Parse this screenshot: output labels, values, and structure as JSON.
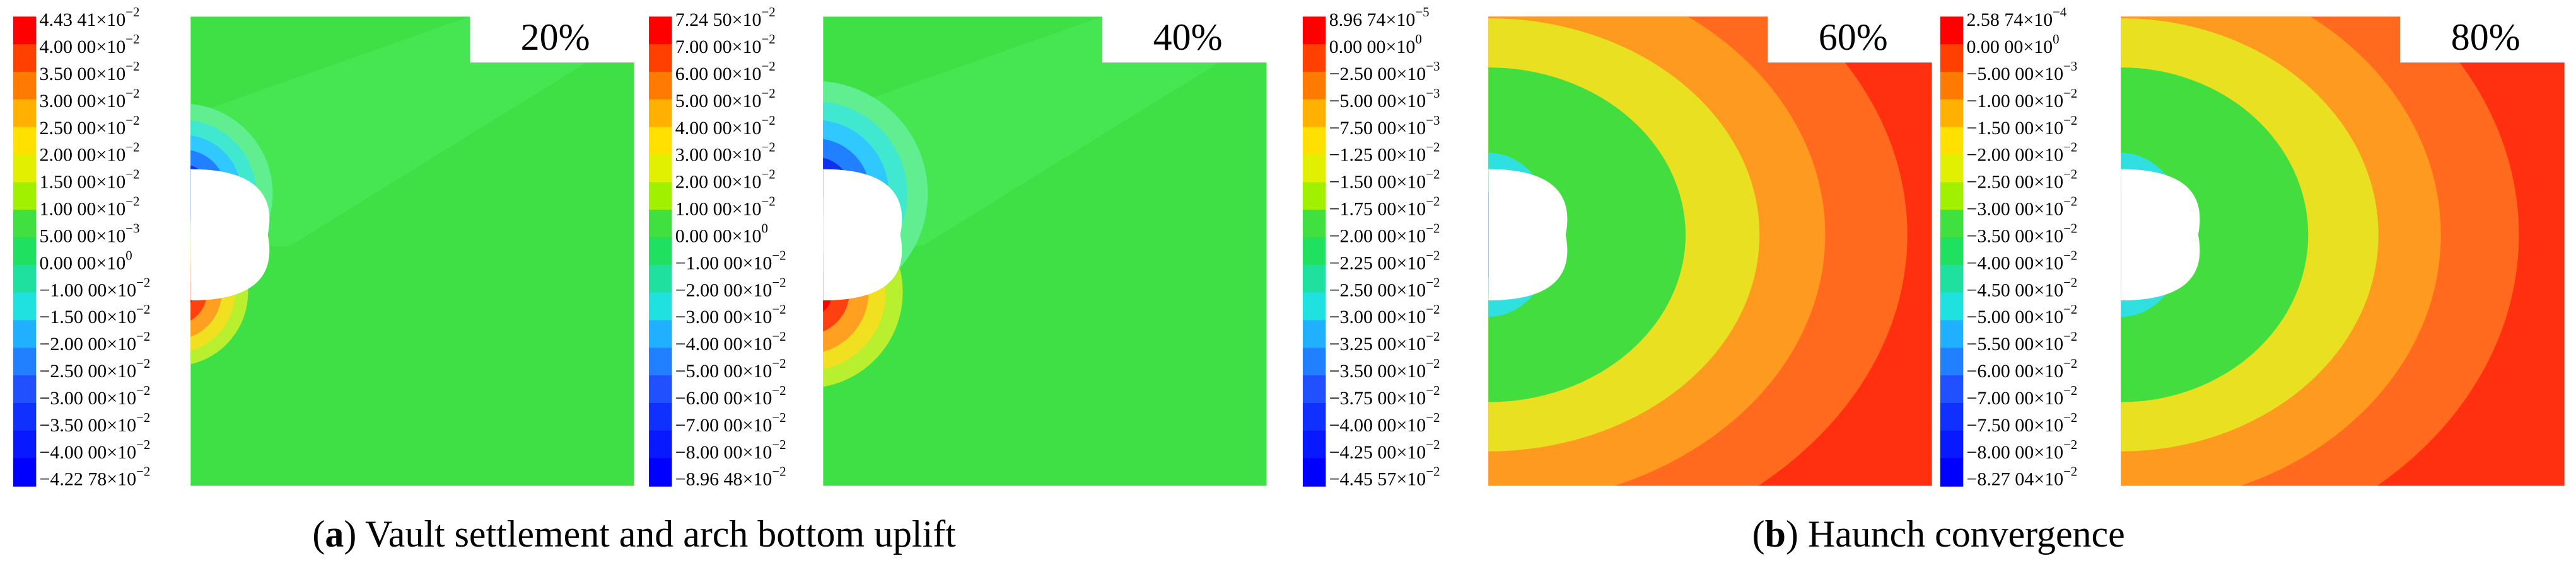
{
  "panels": [
    {
      "percent": "20%",
      "legend": [
        {
          "text": "4.43 41×10",
          "sup": "−2"
        },
        {
          "text": "4.00 00×10",
          "sup": "−2"
        },
        {
          "text": "3.50 00×10",
          "sup": "−2"
        },
        {
          "text": "3.00 00×10",
          "sup": "−2"
        },
        {
          "text": "2.50 00×10",
          "sup": "−2"
        },
        {
          "text": "2.00 00×10",
          "sup": "−2"
        },
        {
          "text": "1.50 00×10",
          "sup": "−2"
        },
        {
          "text": "1.00 00×10",
          "sup": "−2"
        },
        {
          "text": "5.00 00×10",
          "sup": "−3"
        },
        {
          "text": "0.00 00×10",
          "sup": "0"
        },
        {
          "text": "−1.00 00×10",
          "sup": "−2"
        },
        {
          "text": "−1.50 00×10",
          "sup": "−2"
        },
        {
          "text": "−2.00 00×10",
          "sup": "−2"
        },
        {
          "text": "−2.50 00×10",
          "sup": "−2"
        },
        {
          "text": "−3.00 00×10",
          "sup": "−2"
        },
        {
          "text": "−3.50 00×10",
          "sup": "−2"
        },
        {
          "text": "−4.00 00×10",
          "sup": "−2"
        },
        {
          "text": "−4.22 78×10",
          "sup": "−2"
        }
      ]
    },
    {
      "percent": "40%",
      "legend": [
        {
          "text": "7.24 50×10",
          "sup": "−2"
        },
        {
          "text": "7.00 00×10",
          "sup": "−2"
        },
        {
          "text": "6.00 00×10",
          "sup": "−2"
        },
        {
          "text": "5.00 00×10",
          "sup": "−2"
        },
        {
          "text": "4.00 00×10",
          "sup": "−2"
        },
        {
          "text": "3.00 00×10",
          "sup": "−2"
        },
        {
          "text": "2.00 00×10",
          "sup": "−2"
        },
        {
          "text": "1.00 00×10",
          "sup": "−2"
        },
        {
          "text": "0.00 00×10",
          "sup": "0"
        },
        {
          "text": "−1.00 00×10",
          "sup": "−2"
        },
        {
          "text": "−2.00 00×10",
          "sup": "−2"
        },
        {
          "text": "−3.00 00×10",
          "sup": "−2"
        },
        {
          "text": "−4.00 00×10",
          "sup": "−2"
        },
        {
          "text": "−5.00 00×10",
          "sup": "−2"
        },
        {
          "text": "−6.00 00×10",
          "sup": "−2"
        },
        {
          "text": "−7.00 00×10",
          "sup": "−2"
        },
        {
          "text": "−8.00 00×10",
          "sup": "−2"
        },
        {
          "text": "−8.96 48×10",
          "sup": "−2"
        }
      ]
    },
    {
      "percent": "60%",
      "legend": [
        {
          "text": "8.96 74×10",
          "sup": "−5"
        },
        {
          "text": "0.00 00×10",
          "sup": "0"
        },
        {
          "text": "−2.50 00×10",
          "sup": "−3"
        },
        {
          "text": "−5.00 00×10",
          "sup": "−3"
        },
        {
          "text": "−7.50 00×10",
          "sup": "−3"
        },
        {
          "text": "−1.25 00×10",
          "sup": "−2"
        },
        {
          "text": "−1.50 00×10",
          "sup": "−2"
        },
        {
          "text": "−1.75 00×10",
          "sup": "−2"
        },
        {
          "text": "−2.00 00×10",
          "sup": "−2"
        },
        {
          "text": "−2.25 00×10",
          "sup": "−2"
        },
        {
          "text": "−2.50 00×10",
          "sup": "−2"
        },
        {
          "text": "−3.00 00×10",
          "sup": "−2"
        },
        {
          "text": "−3.25 00×10",
          "sup": "−2"
        },
        {
          "text": "−3.50 00×10",
          "sup": "−2"
        },
        {
          "text": "−3.75 00×10",
          "sup": "−2"
        },
        {
          "text": "−4.00 00×10",
          "sup": "−2"
        },
        {
          "text": "−4.25 00×10",
          "sup": "−2"
        },
        {
          "text": "−4.45 57×10",
          "sup": "−2"
        }
      ]
    },
    {
      "percent": "80%",
      "legend": [
        {
          "text": "2.58 74×10",
          "sup": "−4"
        },
        {
          "text": "0.00 00×10",
          "sup": "0"
        },
        {
          "text": "−5.00 00×10",
          "sup": "−3"
        },
        {
          "text": "−1.00 00×10",
          "sup": "−2"
        },
        {
          "text": "−1.50 00×10",
          "sup": "−2"
        },
        {
          "text": "−2.00 00×10",
          "sup": "−2"
        },
        {
          "text": "−2.50 00×10",
          "sup": "−2"
        },
        {
          "text": "−3.00 00×10",
          "sup": "−2"
        },
        {
          "text": "−3.50 00×10",
          "sup": "−2"
        },
        {
          "text": "−4.00 00×10",
          "sup": "−2"
        },
        {
          "text": "−4.50 00×10",
          "sup": "−2"
        },
        {
          "text": "−5.00 00×10",
          "sup": "−2"
        },
        {
          "text": "−5.50 00×10",
          "sup": "−2"
        },
        {
          "text": "−6.00 00×10",
          "sup": "−2"
        },
        {
          "text": "−7.00 00×10",
          "sup": "−2"
        },
        {
          "text": "−7.50 00×10",
          "sup": "−2"
        },
        {
          "text": "−8.00 00×10",
          "sup": "−2"
        },
        {
          "text": "−8.27 04×10",
          "sup": "−2"
        }
      ]
    }
  ],
  "captions": [
    {
      "open": "(",
      "letter": "a",
      "rest": ") Vault settlement and arch bottom uplift"
    },
    {
      "open": "(",
      "letter": "b",
      "rest": ") Haunch convergence"
    }
  ]
}
